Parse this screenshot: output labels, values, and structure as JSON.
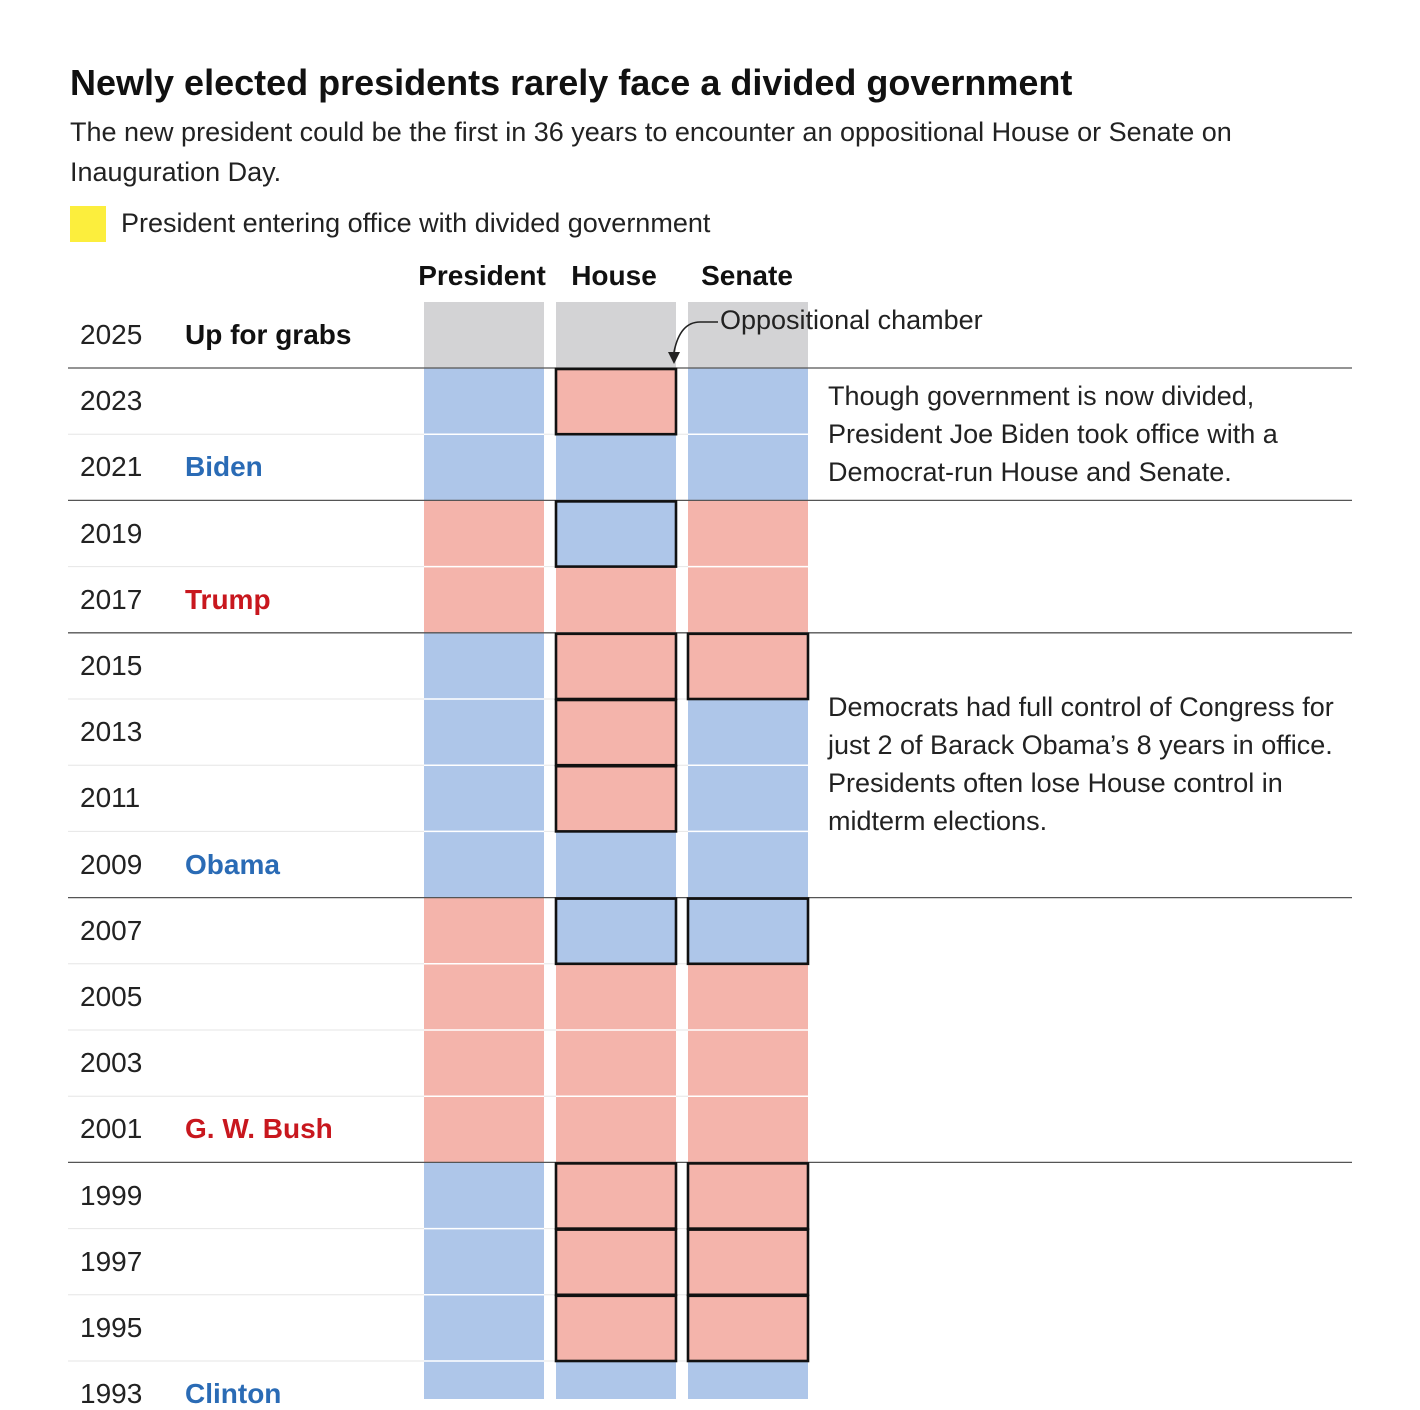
{
  "title": "Newly elected presidents rarely face a divided government",
  "subtitle": "The new president could be the first in 36 years to encounter an oppositional House or Senate on Inauguration Day.",
  "legend": {
    "label": "President entering office with divided government",
    "color": "#fcee3d"
  },
  "columns": {
    "president": "President",
    "house": "House",
    "senate": "Senate"
  },
  "colors": {
    "democrat": "#aec6e9",
    "republican": "#f4b4ab",
    "pending": "#d3d3d5",
    "democrat_text": "#2a6bb5",
    "republican_text": "#c8171e"
  },
  "callout": "Oppositional chamber",
  "notes": [
    "Though government is now divided, President Joe Biden took office with a Democrat-run House and Senate.",
    "Democrats had full control of Congress for just 2 of Barack Obama’s 8 years in office. Presidents often lose House control in midterm elections."
  ],
  "chart_data": {
    "type": "table",
    "title": "Newly elected presidents rarely face a divided government",
    "columns": [
      "President",
      "House",
      "Senate"
    ],
    "rows": [
      {
        "year": "2025",
        "president_label": "Up for grabs",
        "president": "pending",
        "house": "pending",
        "senate": "pending",
        "party": "none",
        "term_start": true,
        "opp_house": false,
        "opp_senate": false
      },
      {
        "year": "2023",
        "president_label": "",
        "president": "D",
        "house": "R",
        "senate": "D",
        "party": "D",
        "term_start": false,
        "opp_house": true,
        "opp_senate": false
      },
      {
        "year": "2021",
        "president_label": "Biden",
        "president": "D",
        "house": "D",
        "senate": "D",
        "party": "D",
        "term_start": true,
        "opp_house": false,
        "opp_senate": false
      },
      {
        "year": "2019",
        "president_label": "",
        "president": "R",
        "house": "D",
        "senate": "R",
        "party": "R",
        "term_start": false,
        "opp_house": true,
        "opp_senate": false
      },
      {
        "year": "2017",
        "president_label": "Trump",
        "president": "R",
        "house": "R",
        "senate": "R",
        "party": "R",
        "term_start": true,
        "opp_house": false,
        "opp_senate": false
      },
      {
        "year": "2015",
        "president_label": "",
        "president": "D",
        "house": "R",
        "senate": "R",
        "party": "D",
        "term_start": false,
        "opp_house": true,
        "opp_senate": true
      },
      {
        "year": "2013",
        "president_label": "",
        "president": "D",
        "house": "R",
        "senate": "D",
        "party": "D",
        "term_start": false,
        "opp_house": true,
        "opp_senate": false
      },
      {
        "year": "2011",
        "president_label": "",
        "president": "D",
        "house": "R",
        "senate": "D",
        "party": "D",
        "term_start": false,
        "opp_house": true,
        "opp_senate": false
      },
      {
        "year": "2009",
        "president_label": "Obama",
        "president": "D",
        "house": "D",
        "senate": "D",
        "party": "D",
        "term_start": true,
        "opp_house": false,
        "opp_senate": false
      },
      {
        "year": "2007",
        "president_label": "",
        "president": "R",
        "house": "D",
        "senate": "D",
        "party": "R",
        "term_start": false,
        "opp_house": true,
        "opp_senate": true
      },
      {
        "year": "2005",
        "president_label": "",
        "president": "R",
        "house": "R",
        "senate": "R",
        "party": "R",
        "term_start": false,
        "opp_house": false,
        "opp_senate": false
      },
      {
        "year": "2003",
        "president_label": "",
        "president": "R",
        "house": "R",
        "senate": "R",
        "party": "R",
        "term_start": false,
        "opp_house": false,
        "opp_senate": false
      },
      {
        "year": "2001",
        "president_label": "G. W. Bush",
        "president": "R",
        "house": "R",
        "senate": "R",
        "party": "R",
        "term_start": true,
        "opp_house": false,
        "opp_senate": false
      },
      {
        "year": "1999",
        "president_label": "",
        "president": "D",
        "house": "R",
        "senate": "R",
        "party": "D",
        "term_start": false,
        "opp_house": true,
        "opp_senate": true
      },
      {
        "year": "1997",
        "president_label": "",
        "president": "D",
        "house": "R",
        "senate": "R",
        "party": "D",
        "term_start": false,
        "opp_house": true,
        "opp_senate": true
      },
      {
        "year": "1995",
        "president_label": "",
        "president": "D",
        "house": "R",
        "senate": "R",
        "party": "D",
        "term_start": false,
        "opp_house": true,
        "opp_senate": true
      },
      {
        "year": "1993",
        "president_label": "Clinton",
        "president": "D",
        "house": "D",
        "senate": "D",
        "party": "D",
        "term_start": true,
        "opp_house": false,
        "opp_senate": false
      }
    ]
  }
}
